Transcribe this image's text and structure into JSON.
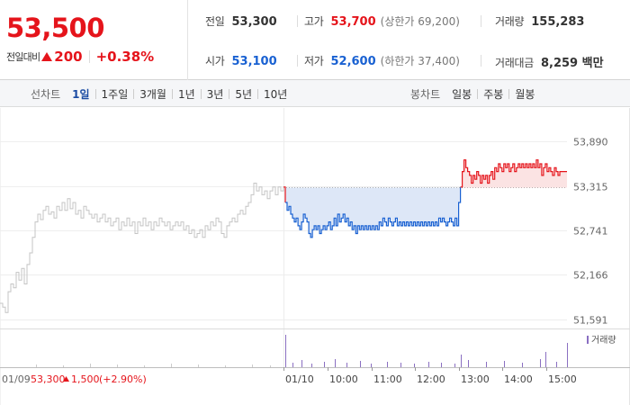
{
  "header": {
    "price": "53,500",
    "change_label": "전일대비",
    "change_abs": "200",
    "change_pct": "+0.38%"
  },
  "stats": {
    "prev_close": {
      "label": "전일",
      "value": "53,300"
    },
    "high": {
      "label": "고가",
      "value": "53,700",
      "sub": "(상한가 69,200)"
    },
    "volume": {
      "label": "거래량",
      "value": "155,283"
    },
    "open": {
      "label": "시가",
      "value": "53,100"
    },
    "low": {
      "label": "저가",
      "value": "52,600",
      "sub": "(하한가 37,400)"
    },
    "amount": {
      "label": "거래대금",
      "value": "8,259 백만"
    }
  },
  "toolbar": {
    "line_label": "선차트",
    "line_periods": [
      "1일",
      "1주일",
      "3개월",
      "1년",
      "3년",
      "5년",
      "10년"
    ],
    "line_active": "1일",
    "candle_label": "봉차트",
    "candle_periods": [
      "일봉",
      "주봉",
      "월봉"
    ]
  },
  "colors": {
    "up": "#e5141b",
    "down": "#1961d2",
    "prev_day": "#c4c4c4",
    "fill_up": "#fbe3e3",
    "fill_down": "#dde7f7"
  },
  "chart_data": {
    "type": "line",
    "y_ticks": [
      "53,890",
      "53,315",
      "52,741",
      "52,166",
      "51,591"
    ],
    "ylim": [
      51591,
      53890
    ],
    "baseline": 53300,
    "x_ticks": [
      "01/10",
      "10:00",
      "11:00",
      "12:00",
      "13:00",
      "14:00",
      "15:00"
    ],
    "volume_label": "거래량",
    "prev_day_caption": {
      "date": "01/09",
      "price": "53,300",
      "change": "1,500",
      "pct": "(+2.90%)"
    },
    "prev_day_series": [
      [
        0,
        51800
      ],
      [
        3,
        51750
      ],
      [
        6,
        51680
      ],
      [
        9,
        51950
      ],
      [
        12,
        52050
      ],
      [
        15,
        52000
      ],
      [
        18,
        52200
      ],
      [
        21,
        52100
      ],
      [
        24,
        52250
      ],
      [
        27,
        52050
      ],
      [
        30,
        52300
      ],
      [
        33,
        52450
      ],
      [
        36,
        52650
      ],
      [
        39,
        52850
      ],
      [
        42,
        52950
      ],
      [
        45,
        52880
      ],
      [
        48,
        53000
      ],
      [
        51,
        53050
      ],
      [
        54,
        52950
      ],
      [
        57,
        52980
      ],
      [
        60,
        52900
      ],
      [
        63,
        53050
      ],
      [
        66,
        53000
      ],
      [
        69,
        53100
      ],
      [
        72,
        53000
      ],
      [
        75,
        53150
      ],
      [
        78,
        53020
      ],
      [
        81,
        53100
      ],
      [
        84,
        52950
      ],
      [
        87,
        53000
      ],
      [
        90,
        52900
      ],
      [
        93,
        53050
      ],
      [
        96,
        53000
      ],
      [
        99,
        52950
      ],
      [
        102,
        52900
      ],
      [
        105,
        52950
      ],
      [
        108,
        52850
      ],
      [
        111,
        52900
      ],
      [
        114,
        52950
      ],
      [
        117,
        52850
      ],
      [
        120,
        52900
      ],
      [
        123,
        52800
      ],
      [
        126,
        52850
      ],
      [
        129,
        52900
      ],
      [
        132,
        52750
      ],
      [
        135,
        52850
      ],
      [
        138,
        52800
      ],
      [
        141,
        52900
      ],
      [
        144,
        52800
      ],
      [
        147,
        52850
      ],
      [
        150,
        52700
      ],
      [
        153,
        52850
      ],
      [
        156,
        52800
      ],
      [
        159,
        52900
      ],
      [
        162,
        52800
      ],
      [
        165,
        52850
      ],
      [
        168,
        52750
      ],
      [
        171,
        52850
      ],
      [
        174,
        52800
      ],
      [
        177,
        52900
      ],
      [
        180,
        52850
      ],
      [
        183,
        52800
      ],
      [
        186,
        52850
      ],
      [
        189,
        52750
      ],
      [
        192,
        52800
      ],
      [
        195,
        52850
      ],
      [
        198,
        52800
      ],
      [
        201,
        52850
      ],
      [
        204,
        52750
      ],
      [
        207,
        52800
      ],
      [
        210,
        52700
      ],
      [
        213,
        52750
      ],
      [
        216,
        52650
      ],
      [
        219,
        52700
      ],
      [
        222,
        52750
      ],
      [
        225,
        52650
      ],
      [
        228,
        52800
      ],
      [
        231,
        52750
      ],
      [
        234,
        52850
      ],
      [
        237,
        52800
      ],
      [
        240,
        52900
      ],
      [
        243,
        52850
      ],
      [
        246,
        52700
      ],
      [
        249,
        52650
      ],
      [
        252,
        52800
      ],
      [
        255,
        52850
      ],
      [
        258,
        52900
      ],
      [
        261,
        52850
      ],
      [
        264,
        52950
      ],
      [
        267,
        53000
      ],
      [
        270,
        52950
      ],
      [
        273,
        53050
      ],
      [
        276,
        53100
      ],
      [
        279,
        53200
      ],
      [
        282,
        53350
      ],
      [
        285,
        53250
      ],
      [
        288,
        53300
      ],
      [
        291,
        53200
      ],
      [
        294,
        53250
      ],
      [
        297,
        53150
      ],
      [
        300,
        53250
      ],
      [
        303,
        53300
      ],
      [
        306,
        53200
      ],
      [
        309,
        53300
      ],
      [
        312,
        53250
      ],
      [
        315,
        53300
      ]
    ],
    "today_series": [
      [
        0,
        53300
      ],
      [
        2,
        53100
      ],
      [
        4,
        53000
      ],
      [
        6,
        53050
      ],
      [
        8,
        52950
      ],
      [
        10,
        52900
      ],
      [
        12,
        52850
      ],
      [
        14,
        52900
      ],
      [
        16,
        52800
      ],
      [
        18,
        52750
      ],
      [
        20,
        52850
      ],
      [
        22,
        52950
      ],
      [
        24,
        52900
      ],
      [
        26,
        52850
      ],
      [
        28,
        52700
      ],
      [
        30,
        52650
      ],
      [
        32,
        52750
      ],
      [
        34,
        52800
      ],
      [
        36,
        52750
      ],
      [
        38,
        52800
      ],
      [
        40,
        52700
      ],
      [
        42,
        52750
      ],
      [
        44,
        52800
      ],
      [
        46,
        52750
      ],
      [
        48,
        52800
      ],
      [
        50,
        52850
      ],
      [
        52,
        52750
      ],
      [
        54,
        52800
      ],
      [
        56,
        52900
      ],
      [
        58,
        52800
      ],
      [
        60,
        52950
      ],
      [
        62,
        52850
      ],
      [
        64,
        52900
      ],
      [
        66,
        52950
      ],
      [
        68,
        52850
      ],
      [
        70,
        52900
      ],
      [
        72,
        52800
      ],
      [
        74,
        52850
      ],
      [
        76,
        52750
      ],
      [
        78,
        52800
      ],
      [
        80,
        52700
      ],
      [
        82,
        52800
      ],
      [
        84,
        52750
      ],
      [
        86,
        52800
      ],
      [
        88,
        52750
      ],
      [
        90,
        52800
      ],
      [
        92,
        52750
      ],
      [
        94,
        52800
      ],
      [
        96,
        52750
      ],
      [
        98,
        52800
      ],
      [
        100,
        52750
      ],
      [
        102,
        52800
      ],
      [
        104,
        52750
      ],
      [
        106,
        52850
      ],
      [
        108,
        52800
      ],
      [
        110,
        52900
      ],
      [
        112,
        52850
      ],
      [
        114,
        52800
      ],
      [
        116,
        52900
      ],
      [
        118,
        52850
      ],
      [
        120,
        52800
      ],
      [
        122,
        52850
      ],
      [
        124,
        52900
      ],
      [
        126,
        52800
      ],
      [
        128,
        52850
      ],
      [
        130,
        52800
      ],
      [
        132,
        52850
      ],
      [
        134,
        52800
      ],
      [
        136,
        52850
      ],
      [
        138,
        52800
      ],
      [
        140,
        52850
      ],
      [
        142,
        52800
      ],
      [
        144,
        52850
      ],
      [
        146,
        52800
      ],
      [
        148,
        52850
      ],
      [
        150,
        52800
      ],
      [
        152,
        52850
      ],
      [
        154,
        52800
      ],
      [
        156,
        52850
      ],
      [
        158,
        52800
      ],
      [
        160,
        52850
      ],
      [
        162,
        52800
      ],
      [
        164,
        52850
      ],
      [
        166,
        52800
      ],
      [
        168,
        52850
      ],
      [
        170,
        52800
      ],
      [
        172,
        52900
      ],
      [
        174,
        52850
      ],
      [
        176,
        52900
      ],
      [
        178,
        52850
      ],
      [
        180,
        52800
      ],
      [
        182,
        52850
      ],
      [
        184,
        52900
      ],
      [
        186,
        52850
      ],
      [
        188,
        52800
      ],
      [
        190,
        52900
      ],
      [
        192,
        52800
      ],
      [
        194,
        53100
      ],
      [
        196,
        53300
      ],
      [
        198,
        53500
      ],
      [
        200,
        53650
      ],
      [
        202,
        53550
      ],
      [
        204,
        53500
      ],
      [
        206,
        53450
      ],
      [
        208,
        53350
      ],
      [
        210,
        53450
      ],
      [
        212,
        53400
      ],
      [
        214,
        53500
      ],
      [
        216,
        53450
      ],
      [
        218,
        53350
      ],
      [
        220,
        53450
      ],
      [
        222,
        53400
      ],
      [
        224,
        53450
      ],
      [
        226,
        53350
      ],
      [
        228,
        53450
      ],
      [
        230,
        53500
      ],
      [
        232,
        53400
      ],
      [
        234,
        53550
      ],
      [
        236,
        53500
      ],
      [
        238,
        53600
      ],
      [
        240,
        53550
      ],
      [
        242,
        53500
      ],
      [
        244,
        53600
      ],
      [
        246,
        53550
      ],
      [
        248,
        53600
      ],
      [
        250,
        53500
      ],
      [
        252,
        53550
      ],
      [
        254,
        53600
      ],
      [
        256,
        53500
      ],
      [
        258,
        53550
      ],
      [
        260,
        53600
      ],
      [
        262,
        53550
      ],
      [
        264,
        53600
      ],
      [
        266,
        53550
      ],
      [
        268,
        53600
      ],
      [
        270,
        53550
      ],
      [
        272,
        53600
      ],
      [
        274,
        53550
      ],
      [
        276,
        53600
      ],
      [
        278,
        53550
      ],
      [
        280,
        53650
      ],
      [
        282,
        53550
      ],
      [
        284,
        53600
      ],
      [
        286,
        53450
      ],
      [
        288,
        53550
      ],
      [
        290,
        53600
      ],
      [
        292,
        53500
      ],
      [
        294,
        53550
      ],
      [
        296,
        53500
      ],
      [
        298,
        53450
      ],
      [
        300,
        53550
      ],
      [
        302,
        53500
      ],
      [
        304,
        53450
      ],
      [
        306,
        53500
      ],
      [
        308,
        53500
      ],
      [
        310,
        53500
      ],
      [
        314,
        53500
      ]
    ]
  }
}
